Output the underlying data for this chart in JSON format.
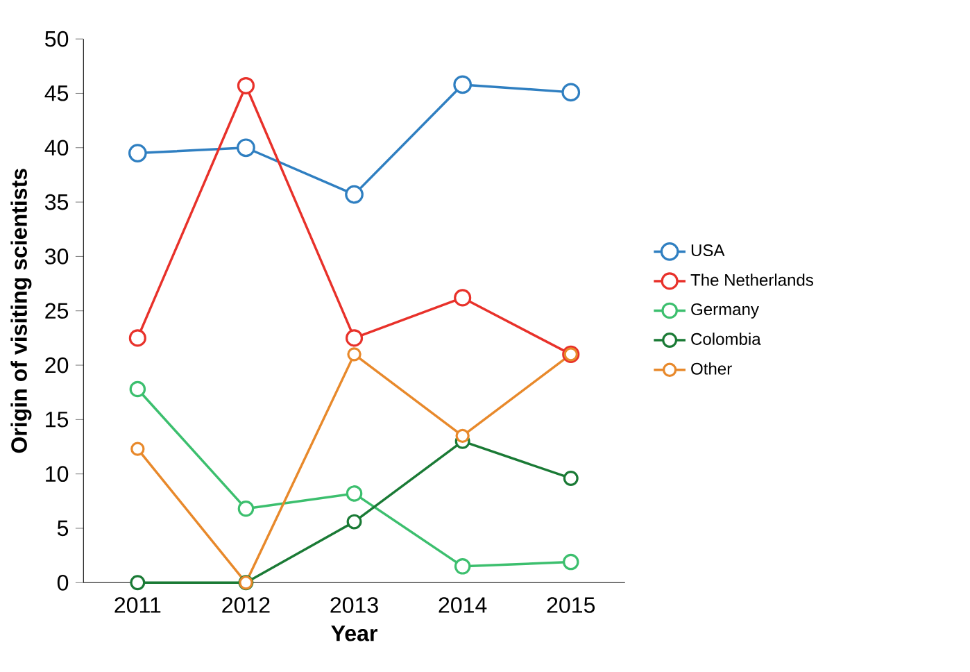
{
  "chart_data": {
    "type": "line",
    "xlabel": "Year",
    "ylabel": "Origin of visiting scientists",
    "categories": [
      "2011",
      "2012",
      "2013",
      "2014",
      "2015"
    ],
    "series": [
      {
        "name": "USA",
        "color": "#2f7fc1",
        "values": [
          39.5,
          40,
          35.7,
          45.8,
          45.1
        ]
      },
      {
        "name": "The Netherlands",
        "color": "#e8312a",
        "values": [
          22.5,
          45.7,
          22.5,
          26.2,
          21
        ]
      },
      {
        "name": "Germany",
        "color": "#3cbf6e",
        "values": [
          17.8,
          6.8,
          8.2,
          1.5,
          1.9
        ]
      },
      {
        "name": "Colombia",
        "color": "#1a7a35",
        "values": [
          0,
          0,
          5.6,
          13,
          9.6
        ]
      },
      {
        "name": "Other",
        "color": "#e8892b",
        "values": [
          12.3,
          0,
          21,
          13.5,
          21
        ]
      }
    ],
    "ylim": [
      0,
      50
    ],
    "yticks": [
      0,
      5,
      10,
      15,
      20,
      25,
      30,
      35,
      40,
      45,
      50
    ],
    "legend": "right",
    "marker": "circle",
    "line_style": "solid",
    "grid": false
  }
}
